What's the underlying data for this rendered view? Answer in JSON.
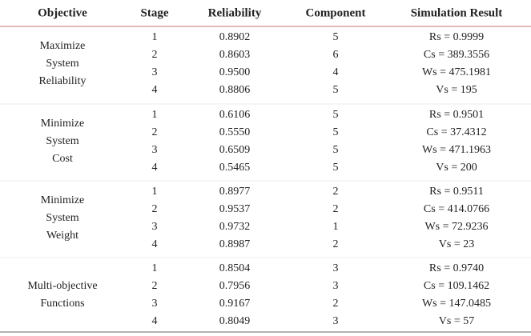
{
  "table": {
    "columns": [
      "Objective",
      "Stage",
      "Reliability",
      "Component",
      "Simulation Result"
    ],
    "groups": [
      {
        "objective": [
          "Maximize",
          "System",
          "Reliability"
        ],
        "rows": [
          [
            "1",
            "0.8902",
            "5",
            "Rs = 0.9999"
          ],
          [
            "2",
            "0.8603",
            "6",
            "Cs = 389.3556"
          ],
          [
            "3",
            "0.9500",
            "4",
            "Ws = 475.1981"
          ],
          [
            "4",
            "0.8806",
            "5",
            "Vs = 195"
          ]
        ]
      },
      {
        "objective": [
          "Minimize",
          "System",
          "Cost"
        ],
        "rows": [
          [
            "1",
            "0.6106",
            "5",
            "Rs = 0.9501"
          ],
          [
            "2",
            "0.5550",
            "5",
            "Cs = 37.4312"
          ],
          [
            "3",
            "0.6509",
            "5",
            "Ws = 471.1963"
          ],
          [
            "4",
            "0.5465",
            "5",
            "Vs = 200"
          ]
        ]
      },
      {
        "objective": [
          "Minimize",
          "System",
          "Weight"
        ],
        "rows": [
          [
            "1",
            "0.8977",
            "2",
            "Rs = 0.9511"
          ],
          [
            "2",
            "0.9537",
            "2",
            "Cs = 414.0766"
          ],
          [
            "3",
            "0.9732",
            "1",
            "Ws = 72.9236"
          ],
          [
            "4",
            "0.8987",
            "2",
            "Vs = 23"
          ]
        ]
      },
      {
        "objective": [
          "Multi-objective",
          "Functions"
        ],
        "rows": [
          [
            "1",
            "0.8504",
            "3",
            "Rs = 0.9740"
          ],
          [
            "2",
            "0.7956",
            "3",
            "Cs = 109.1462"
          ],
          [
            "3",
            "0.9167",
            "2",
            "Ws = 147.0485"
          ],
          [
            "4",
            "0.8049",
            "3",
            "Vs = 57"
          ]
        ]
      }
    ]
  }
}
